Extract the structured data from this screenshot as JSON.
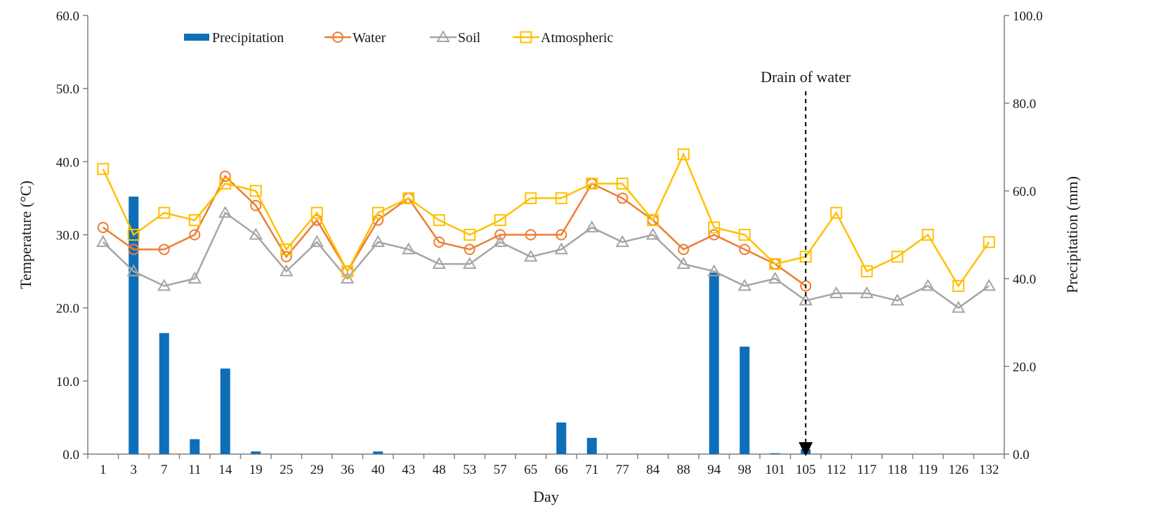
{
  "chart_data": {
    "type": "bar",
    "title": "",
    "xlabel": "Day",
    "ylabel": "Temperature (°C)",
    "y2label": "Precipitation (mm)",
    "ylim": [
      0,
      60
    ],
    "y2lim": [
      0,
      100
    ],
    "yticks": [
      "0.0",
      "10.0",
      "20.0",
      "30.0",
      "40.0",
      "50.0",
      "60.0"
    ],
    "y2ticks": [
      "0.0",
      "20.0",
      "40.0",
      "60.0",
      "80.0",
      "100.0"
    ],
    "grid": false,
    "legend_position": "top-left",
    "categories": [
      "1",
      "3",
      "7",
      "11",
      "14",
      "19",
      "25",
      "29",
      "36",
      "40",
      "43",
      "48",
      "53",
      "57",
      "65",
      "66",
      "71",
      "77",
      "84",
      "88",
      "94",
      "98",
      "101",
      "105",
      "112",
      "117",
      "118",
      "119",
      "126",
      "132"
    ],
    "series": [
      {
        "name": "Precipitation",
        "type": "bar",
        "axis": "right",
        "color": "#0f6eb8",
        "values": [
          0,
          58.7,
          27.6,
          3.4,
          19.5,
          0.6,
          0,
          0,
          0,
          0.6,
          0,
          0,
          0,
          0,
          0,
          7.2,
          3.7,
          0,
          0,
          0,
          41.4,
          24.5,
          0.2,
          1.1,
          0,
          0,
          0,
          0,
          0,
          0
        ]
      },
      {
        "name": "Water",
        "type": "line",
        "axis": "left",
        "color": "#ed7d31",
        "marker": "circle",
        "values": [
          31,
          28,
          28,
          30,
          38,
          34,
          27,
          32,
          25,
          32,
          35,
          29,
          28,
          30,
          30,
          30,
          37,
          35,
          32,
          28,
          30,
          28,
          26,
          23,
          null,
          null,
          null,
          null,
          null,
          null
        ]
      },
      {
        "name": "Soil",
        "type": "line",
        "axis": "left",
        "color": "#a5a5a5",
        "marker": "triangle",
        "values": [
          29,
          25,
          23,
          24,
          33,
          30,
          25,
          29,
          24,
          29,
          28,
          26,
          26,
          29,
          27,
          28,
          31,
          29,
          30,
          26,
          25,
          23,
          24,
          21,
          22,
          22,
          21,
          23,
          20,
          23
        ]
      },
      {
        "name": "Atmospheric",
        "type": "line",
        "axis": "left",
        "color": "#ffc000",
        "marker": "square",
        "values": [
          39,
          30,
          33,
          32,
          37,
          36,
          28,
          33,
          25,
          33,
          35,
          32,
          30,
          32,
          35,
          35,
          37,
          37,
          32,
          41,
          31,
          30,
          26,
          27,
          33,
          25,
          27,
          30,
          23,
          29
        ]
      }
    ],
    "annotations": [
      {
        "text": "Drain of water",
        "category": "105",
        "style": "dashed-arrow"
      }
    ]
  }
}
